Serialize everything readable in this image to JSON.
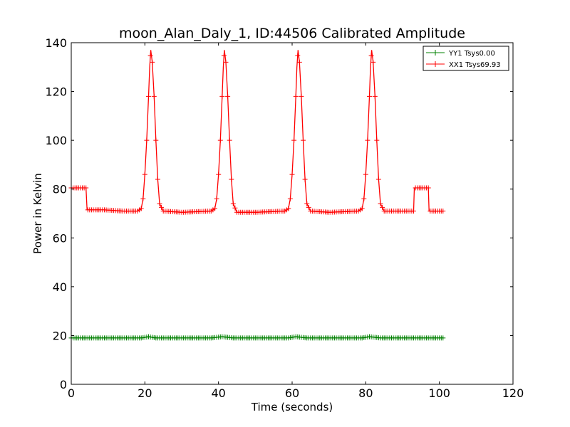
{
  "chart_data": {
    "type": "line",
    "title": "moon_Alan_Daly_1, ID:44506 Calibrated Amplitude",
    "xlabel": "Time (seconds)",
    "ylabel": "Power in Kelvin",
    "xlim": [
      0,
      120
    ],
    "ylim": [
      0,
      140
    ],
    "xticks": [
      "0",
      "20",
      "40",
      "60",
      "80",
      "100",
      "120"
    ],
    "yticks": [
      "0",
      "20",
      "40",
      "60",
      "80",
      "100",
      "120",
      "140"
    ],
    "grid": false,
    "legend_position": "top-right",
    "marker": "plus",
    "series": [
      {
        "name": "YY1 Tsys0.00",
        "color": "#008000",
        "x": [
          0,
          4,
          9,
          14,
          19,
          21,
          23,
          28,
          33,
          38,
          41,
          44,
          49,
          54,
          59,
          61,
          64,
          69,
          74,
          79,
          81,
          84,
          89,
          93,
          97,
          101
        ],
        "y": [
          19,
          19,
          19,
          19,
          19,
          19.5,
          19,
          19,
          19,
          19,
          19.5,
          19,
          19,
          19,
          19,
          19.5,
          19,
          19,
          19,
          19,
          19.5,
          19,
          19,
          19,
          19,
          19
        ]
      },
      {
        "name": "XX1 Tsys69.93",
        "color": "#ff0000",
        "x": [
          0,
          4,
          4.3,
          9,
          14,
          18,
          19,
          19.5,
          20,
          20.5,
          21,
          21.3,
          21.6,
          22,
          22.5,
          23,
          23.5,
          24,
          25,
          30,
          38,
          39,
          39.5,
          40,
          40.5,
          41,
          41.3,
          41.6,
          42,
          42.5,
          43,
          43.5,
          44,
          45,
          50,
          58,
          59,
          59.5,
          60,
          60.5,
          61,
          61.3,
          61.6,
          62,
          62.5,
          63,
          63.5,
          64,
          65,
          70,
          78,
          79,
          79.5,
          80,
          80.5,
          81,
          81.3,
          81.6,
          82,
          82.5,
          83,
          83.5,
          84,
          85,
          90,
          93,
          93.2,
          97,
          97.2,
          101
        ],
        "y": [
          80.5,
          80.5,
          71.5,
          71.5,
          71,
          71,
          72,
          76,
          86,
          100,
          118,
          130,
          137,
          132,
          118,
          100,
          84,
          74,
          71,
          70.5,
          71,
          72,
          76,
          86,
          100,
          118,
          130,
          137,
          132,
          118,
          100,
          84,
          74,
          70.5,
          70.5,
          71,
          72,
          76,
          86,
          100,
          118,
          130,
          137,
          132,
          118,
          100,
          84,
          74,
          71,
          70.5,
          71,
          72,
          76,
          86,
          100,
          118,
          130,
          137,
          132,
          118,
          100,
          84,
          74,
          71,
          71,
          71,
          80.5,
          80.5,
          71,
          71
        ]
      }
    ]
  }
}
